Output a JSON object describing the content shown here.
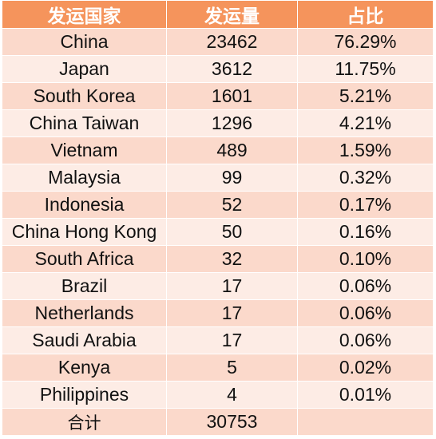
{
  "chart_data": {
    "type": "table",
    "columns": [
      "发运国家",
      "发运量",
      "占比"
    ],
    "rows": [
      {
        "country": "China",
        "volume": "23462",
        "share": "76.29%"
      },
      {
        "country": "Japan",
        "volume": "3612",
        "share": "11.75%"
      },
      {
        "country": "South Korea",
        "volume": "1601",
        "share": "5.21%"
      },
      {
        "country": "China Taiwan",
        "volume": "1296",
        "share": "4.21%"
      },
      {
        "country": "Vietnam",
        "volume": "489",
        "share": "1.59%"
      },
      {
        "country": "Malaysia",
        "volume": "99",
        "share": "0.32%"
      },
      {
        "country": "Indonesia",
        "volume": "52",
        "share": "0.17%"
      },
      {
        "country": "China Hong Kong",
        "volume": "50",
        "share": "0.16%"
      },
      {
        "country": "South Africa",
        "volume": "32",
        "share": "0.10%"
      },
      {
        "country": "Brazil",
        "volume": "17",
        "share": "0.06%"
      },
      {
        "country": "Netherlands",
        "volume": "17",
        "share": "0.06%"
      },
      {
        "country": "Saudi Arabia",
        "volume": "17",
        "share": "0.06%"
      },
      {
        "country": "Kenya",
        "volume": "5",
        "share": "0.02%"
      },
      {
        "country": "Philippines",
        "volume": "4",
        "share": "0.01%"
      }
    ],
    "total": {
      "label": "合计",
      "volume": "30753",
      "share": ""
    }
  },
  "colors": {
    "header_bg": "#f5945c",
    "header_text": "#ffffff",
    "row_dark": "#fbd9cb",
    "row_light": "#fdece5"
  }
}
